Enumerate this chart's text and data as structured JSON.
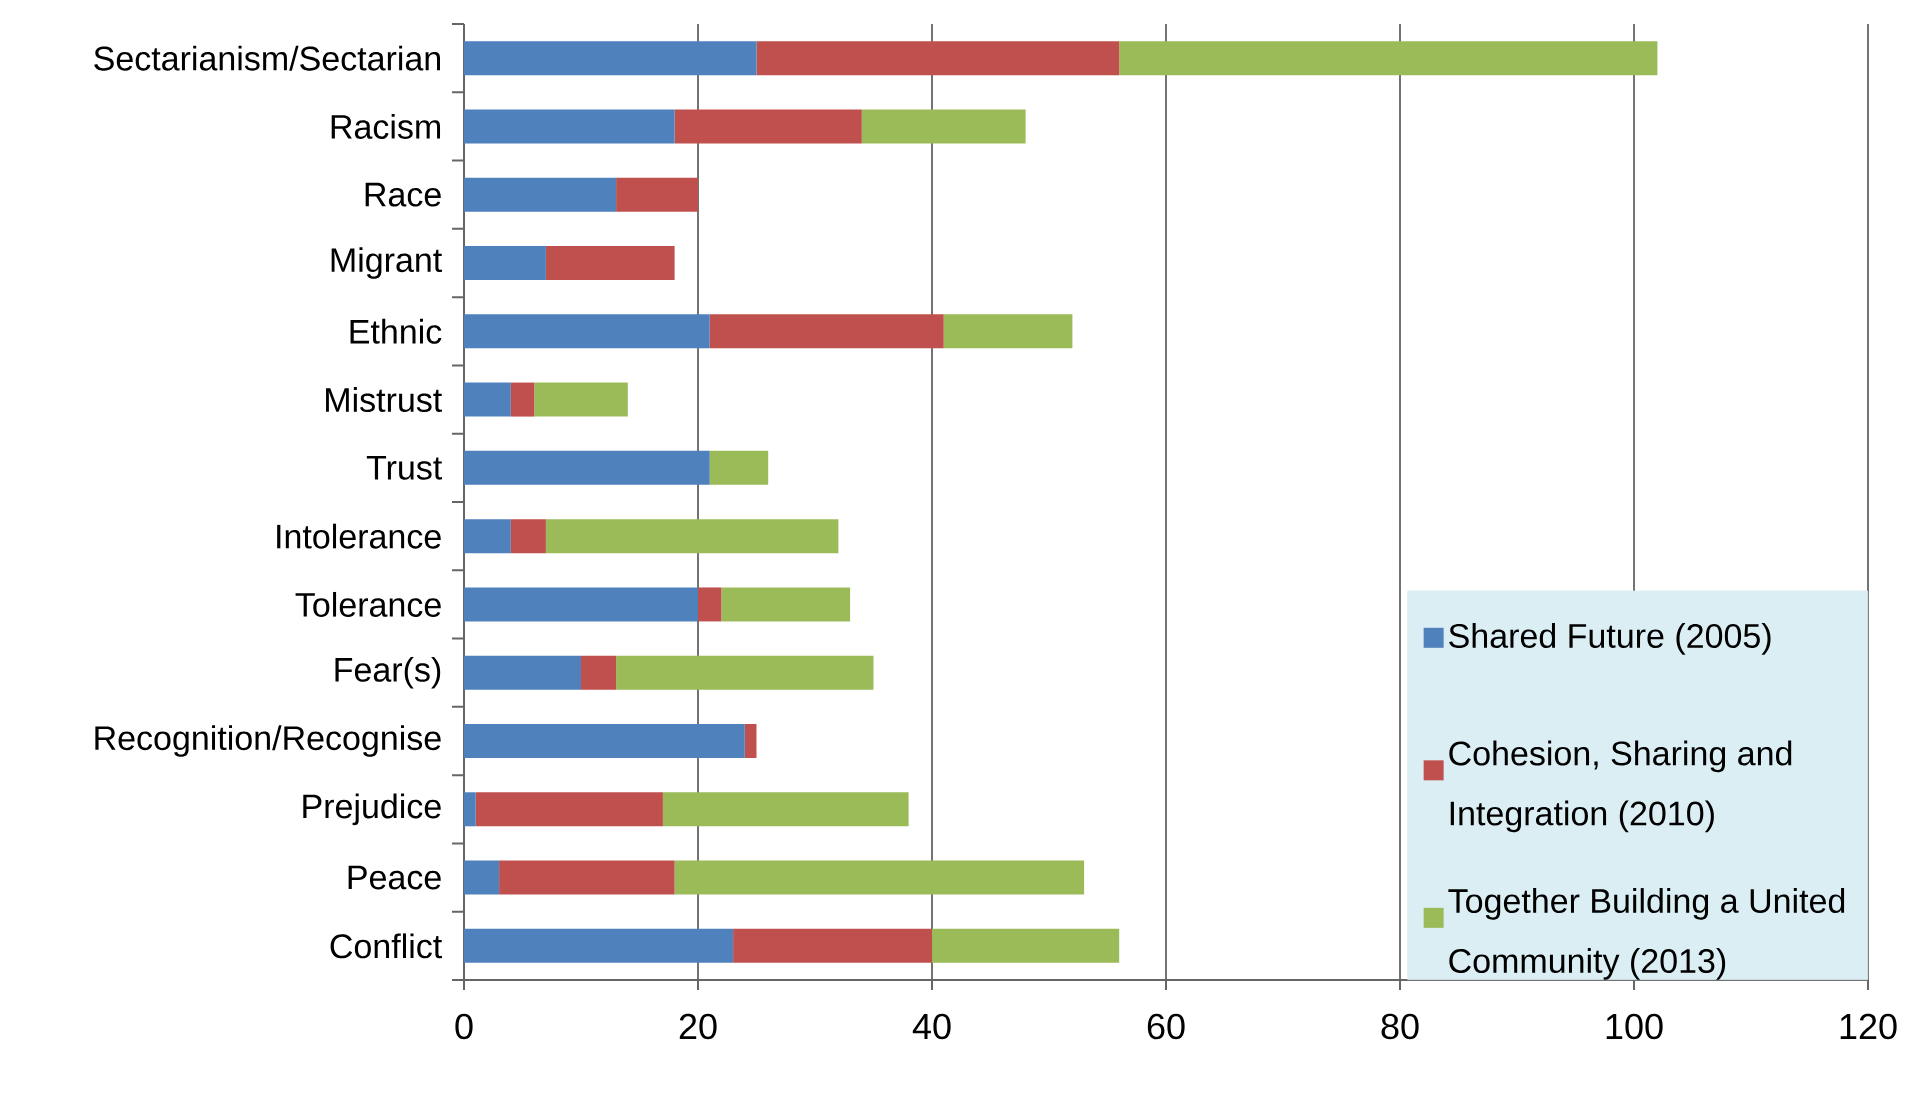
{
  "chart_data": {
    "type": "bar",
    "orientation": "horizontal",
    "stacked": true,
    "categories": [
      "Sectarianism/Sectarian",
      "Racism",
      "Race",
      "Migrant",
      "Ethnic",
      "Mistrust",
      "Trust",
      "Intolerance",
      "Tolerance",
      "Fear(s)",
      "Recognition/Recognise",
      "Prejudice",
      "Peace",
      "Conflict"
    ],
    "series": [
      {
        "name": "Shared Future (2005)",
        "color": "#4f81bd",
        "values": [
          25,
          18,
          13,
          7,
          21,
          4,
          21,
          4,
          20,
          10,
          24,
          1,
          3,
          23
        ]
      },
      {
        "name": "Cohesion, Sharing and Integration (2010)",
        "color": "#c0504d",
        "values": [
          31,
          16,
          7,
          11,
          20,
          2,
          0,
          3,
          2,
          3,
          1,
          16,
          15,
          17
        ]
      },
      {
        "name": "Together Building a United Community (2013)",
        "color": "#9bbb59",
        "values": [
          46,
          14,
          0,
          0,
          11,
          8,
          5,
          25,
          11,
          22,
          0,
          21,
          35,
          16
        ]
      }
    ],
    "xlim": [
      0,
      120
    ],
    "xticks": [
      0,
      20,
      40,
      60,
      80,
      100,
      120
    ],
    "grid": "x",
    "legend": "right"
  }
}
